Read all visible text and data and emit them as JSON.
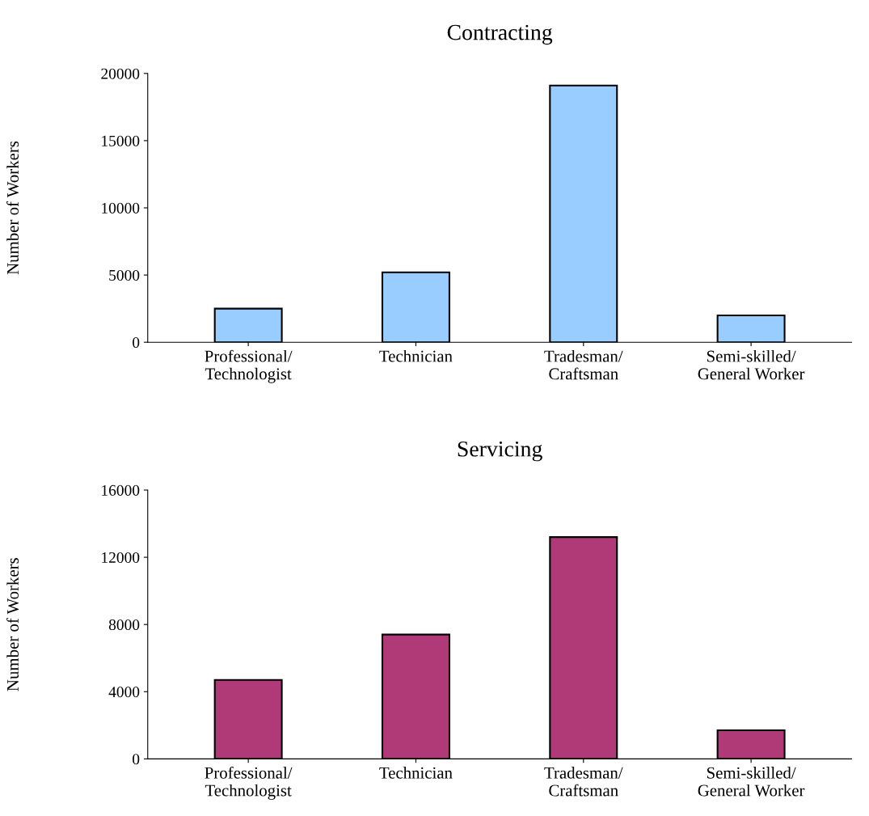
{
  "chart_data": [
    {
      "type": "bar",
      "title": "Contracting",
      "ylabel": "Number of Workers",
      "categories": [
        "Professional/\nTechnologist",
        "Technician",
        "Tradesman/\nCraftsman",
        "Semi-skilled/\nGeneral Worker"
      ],
      "values": [
        2500,
        5200,
        19100,
        2000
      ],
      "color": "#99ccff",
      "ylim": [
        0,
        20000
      ],
      "yticks": [
        0,
        5000,
        10000,
        15000,
        20000
      ],
      "grid": false
    },
    {
      "type": "bar",
      "title": "Servicing",
      "ylabel": "Number of Workers",
      "categories": [
        "Professional/\nTechnologist",
        "Technician",
        "Tradesman/\nCraftsman",
        "Semi-skilled/\nGeneral Worker"
      ],
      "values": [
        4700,
        7400,
        13200,
        1700
      ],
      "color": "#b03a78",
      "ylim": [
        0,
        16000
      ],
      "yticks": [
        0,
        4000,
        8000,
        12000,
        16000
      ],
      "grid": false
    }
  ]
}
